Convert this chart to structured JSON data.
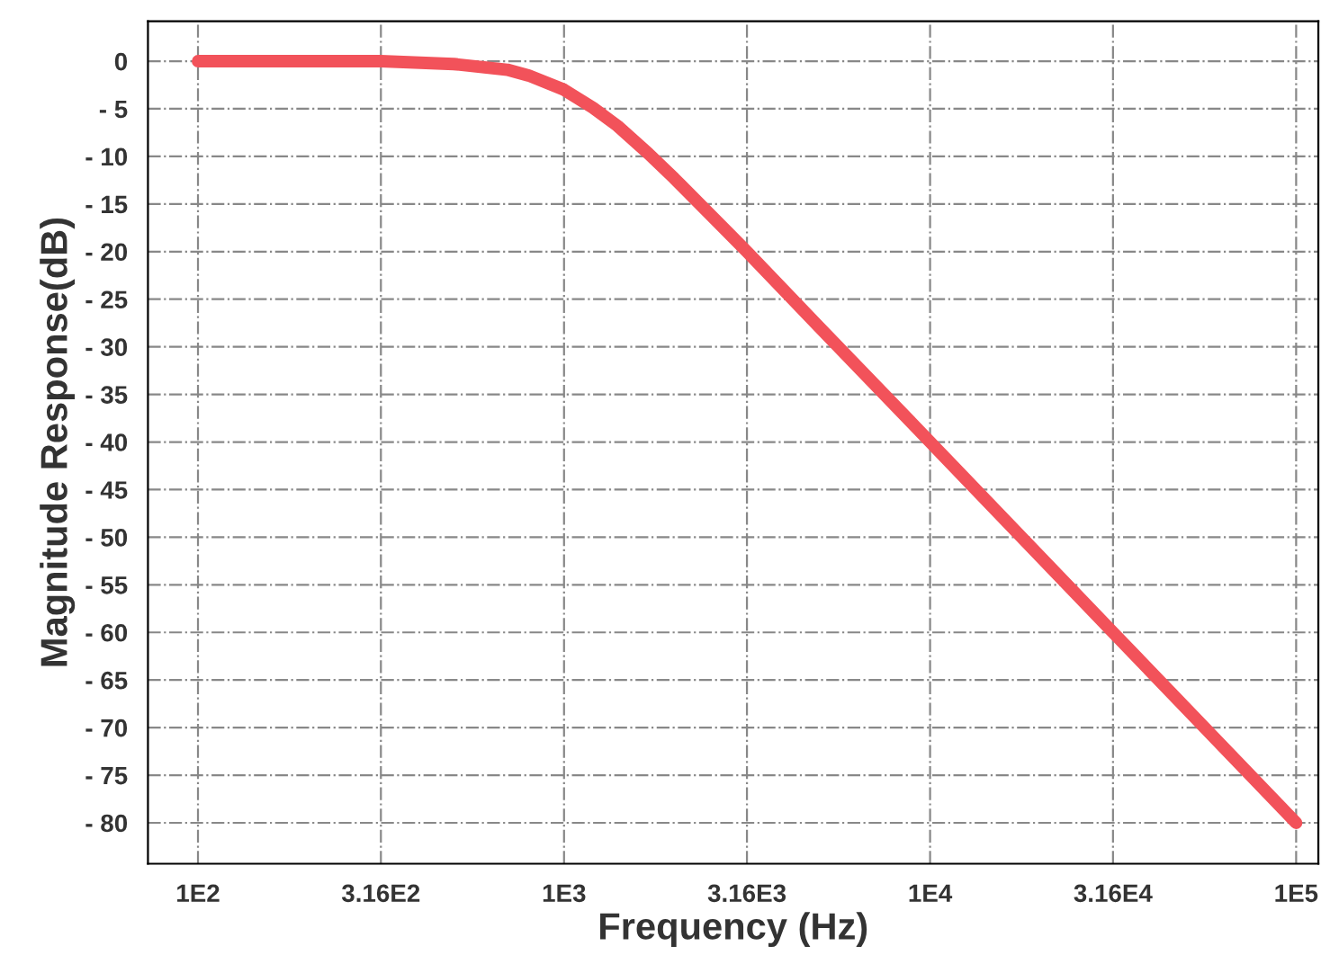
{
  "chart_data": {
    "type": "line",
    "xlabel": "Frequency (Hz)",
    "ylabel": "Magnitude Response(dB)",
    "log": "x",
    "x": [
      100,
      200,
      316,
      500,
      700,
      800,
      1000,
      1200,
      1400,
      1700,
      2000,
      3160,
      5000,
      10000,
      31600,
      100000
    ],
    "series": [
      {
        "color": "#f2525a",
        "values": [
          0,
          0,
          0,
          -0.3,
          -0.9,
          -1.5,
          -3,
          -4.9,
          -6.8,
          -9.7,
          -12.3,
          -20,
          -28,
          -40,
          -60,
          -80
        ]
      }
    ],
    "xlim": [
      73,
      115000
    ],
    "ylim": [
      -84.3,
      4.2
    ],
    "xticks": [
      {
        "value": 100,
        "label": "1E2"
      },
      {
        "value": 316,
        "label": "3.16E2"
      },
      {
        "value": 1000,
        "label": "1E3"
      },
      {
        "value": 3160,
        "label": "3.16E3"
      },
      {
        "value": 10000,
        "label": "1E4"
      },
      {
        "value": 31600,
        "label": "3.16E4"
      },
      {
        "value": 100000,
        "label": "1E5"
      }
    ],
    "yticks": [
      0,
      {
        "value": -5,
        "label": "- 5"
      },
      {
        "value": -10,
        "label": "- 10"
      },
      {
        "value": -15,
        "label": "- 15"
      },
      {
        "value": -20,
        "label": "- 20"
      },
      {
        "value": -25,
        "label": "- 25"
      },
      {
        "value": -30,
        "label": "- 30"
      },
      {
        "value": -35,
        "label": "- 35"
      },
      {
        "value": -40,
        "label": "- 40"
      },
      {
        "value": -45,
        "label": "- 45"
      },
      {
        "value": -50,
        "label": "- 50"
      },
      {
        "value": -55,
        "label": "- 55"
      },
      {
        "value": -60,
        "label": "- 60"
      },
      {
        "value": -65,
        "label": "- 65"
      },
      {
        "value": -70,
        "label": "- 70"
      },
      {
        "value": -75,
        "label": "- 75"
      },
      {
        "value": -80,
        "label": "- 80"
      }
    ],
    "grid": true,
    "line_style": "solid",
    "marker": "none"
  }
}
